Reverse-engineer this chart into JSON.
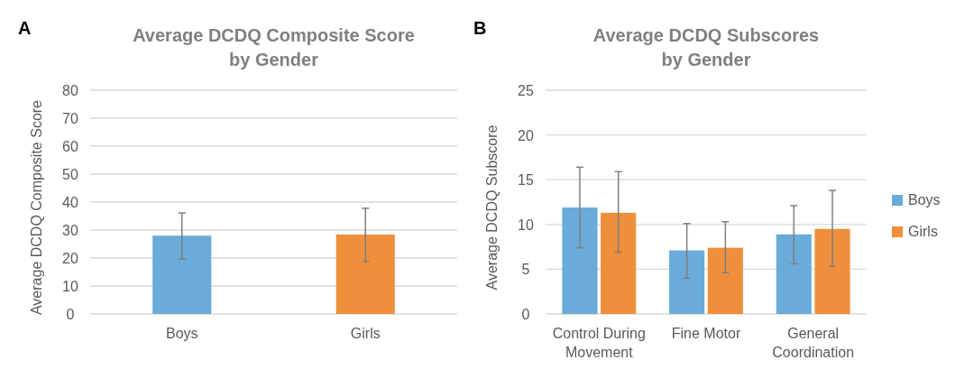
{
  "chart_data": [
    {
      "type": "bar",
      "title": "Average DCDQ Composite Score by Gender",
      "ylabel": "Average DCDQ Composite Score",
      "annotations": [
        "A"
      ],
      "categories": [
        "Boys",
        "Girls"
      ],
      "values": [
        28.0,
        28.4
      ],
      "colors": [
        "#6aabd9",
        "#ef8f3b"
      ],
      "errors": [
        [
          19.6,
          36.1
        ],
        [
          18.8,
          37.8
        ]
      ],
      "ylim": [
        0,
        80
      ],
      "yticks": [
        0,
        10,
        20,
        30,
        40,
        50,
        60,
        70,
        80
      ],
      "grid": "y",
      "legend": false
    },
    {
      "type": "bar",
      "title": "Average DCDQ Subscores by Gender",
      "ylabel": "Average DCDQ Subscore",
      "annotations": [
        "B"
      ],
      "categories": [
        "Control During Movement",
        "Fine Motor",
        "General Coordination"
      ],
      "series": [
        {
          "name": "Boys",
          "color": "#6aabd9",
          "values": [
            11.9,
            7.1,
            8.9
          ],
          "errors": [
            [
              7.4,
              16.4
            ],
            [
              4.0,
              10.1
            ],
            [
              5.6,
              12.1
            ]
          ]
        },
        {
          "name": "Girls",
          "color": "#ef8f3b",
          "values": [
            11.3,
            7.4,
            9.5
          ],
          "errors": [
            [
              6.9,
              15.9
            ],
            [
              4.6,
              10.3
            ],
            [
              5.3,
              13.8
            ]
          ]
        }
      ],
      "ylim": [
        0,
        25
      ],
      "yticks": [
        0,
        5,
        10,
        15,
        20,
        25
      ],
      "grid": "y",
      "legend": "right"
    }
  ]
}
